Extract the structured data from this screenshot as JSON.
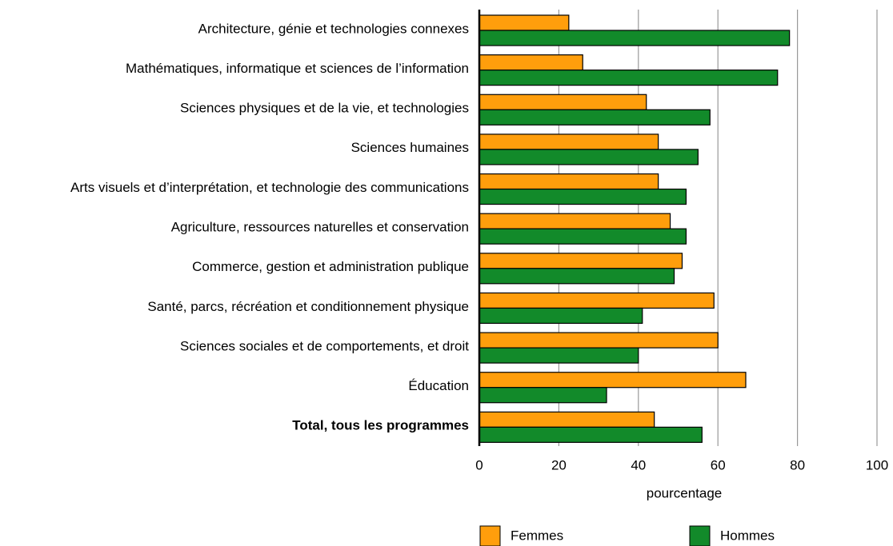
{
  "chart_data": {
    "type": "bar",
    "orientation": "horizontal",
    "categories": [
      "Architecture, génie et technologies connexes",
      "Mathématiques, informatique et sciences de l’information",
      "Sciences physiques et de la vie, et technologies",
      "Sciences humaines",
      "Arts visuels et d’interprétation, et technologie des communications",
      "Agriculture, ressources naturelles et conservation",
      "Commerce, gestion et administration publique",
      "Santé, parcs, récréation et conditionnement physique",
      "Sciences sociales et de comportements, et droit",
      "Éducation",
      "Total, tous les programmes"
    ],
    "series": [
      {
        "name": "Femmes",
        "color": "#ff9e0c",
        "values": [
          22.5,
          26,
          42,
          45,
          45,
          48,
          51,
          59,
          60,
          67,
          44
        ]
      },
      {
        "name": "Hommes",
        "color": "#128a2a",
        "values": [
          78,
          75,
          58,
          55,
          52,
          52,
          49,
          41,
          40,
          32,
          56
        ]
      }
    ],
    "xlabel": "pourcentage",
    "xlim": [
      0,
      100
    ],
    "xticks": [
      0,
      20,
      40,
      60,
      80,
      100
    ],
    "grid": true,
    "legend": "bottom"
  }
}
